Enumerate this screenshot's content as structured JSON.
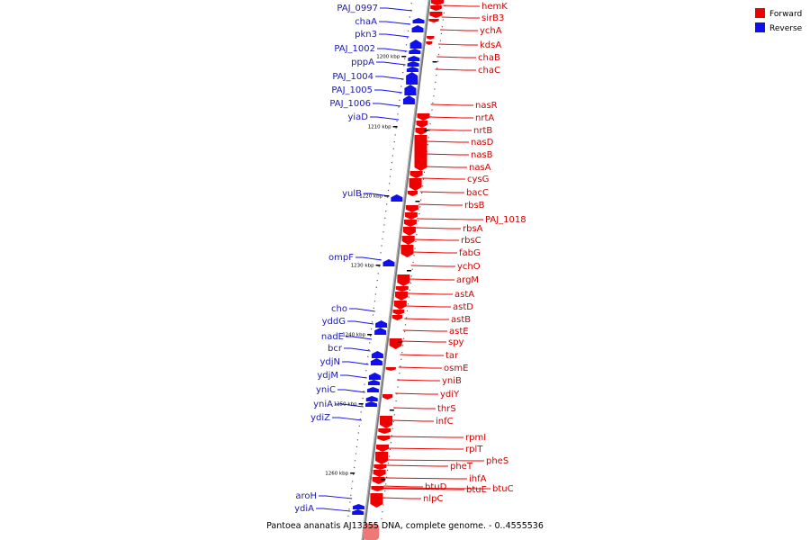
{
  "legend": [
    {
      "label": "Forward",
      "color": "#ee0000"
    },
    {
      "label": "Reverse",
      "color": "#1010ee"
    }
  ],
  "caption": "Pantoea ananatis AJ13355 DNA, complete genome. - 0..4555536",
  "ticks": [
    "1200 kbp",
    "1210 kbp",
    "1220 kbp",
    "1230 kbp",
    "1240 kbp",
    "1250 kbp",
    "1260 kbp"
  ],
  "forward_labels": [
    "hemK",
    "sirB3",
    "ychA",
    "kdsA",
    "chaB",
    "chaC",
    "nasR",
    "nrtA",
    "nrtB",
    "nasD",
    "nasB",
    "nasA",
    "cysG",
    "bacC",
    "rbsB",
    "PAJ_1018",
    "rbsA",
    "rbsC",
    "fabG",
    "ychO",
    "argM",
    "astA",
    "astD",
    "astB",
    "astE",
    "spy",
    "tar",
    "osmE",
    "yniB",
    "ydiY",
    "thrS",
    "infC",
    "rpmI",
    "rplT",
    "pheS",
    "pheT",
    "ihfA",
    "btuE",
    "btuC",
    "btuD",
    "nlpC"
  ],
  "reverse_labels": [
    "PAJ_0997",
    "chaA",
    "pkn3",
    "PAJ_1002",
    "pppA",
    "PAJ_1004",
    "PAJ_1005",
    "PAJ_1006",
    "yiaD",
    "yulB",
    "ompF",
    "cho",
    "yddG",
    "nadE",
    "bcr",
    "ydjN",
    "ydjM",
    "yniC",
    "yniA",
    "ydiZ",
    "aroH",
    "ydiA"
  ]
}
